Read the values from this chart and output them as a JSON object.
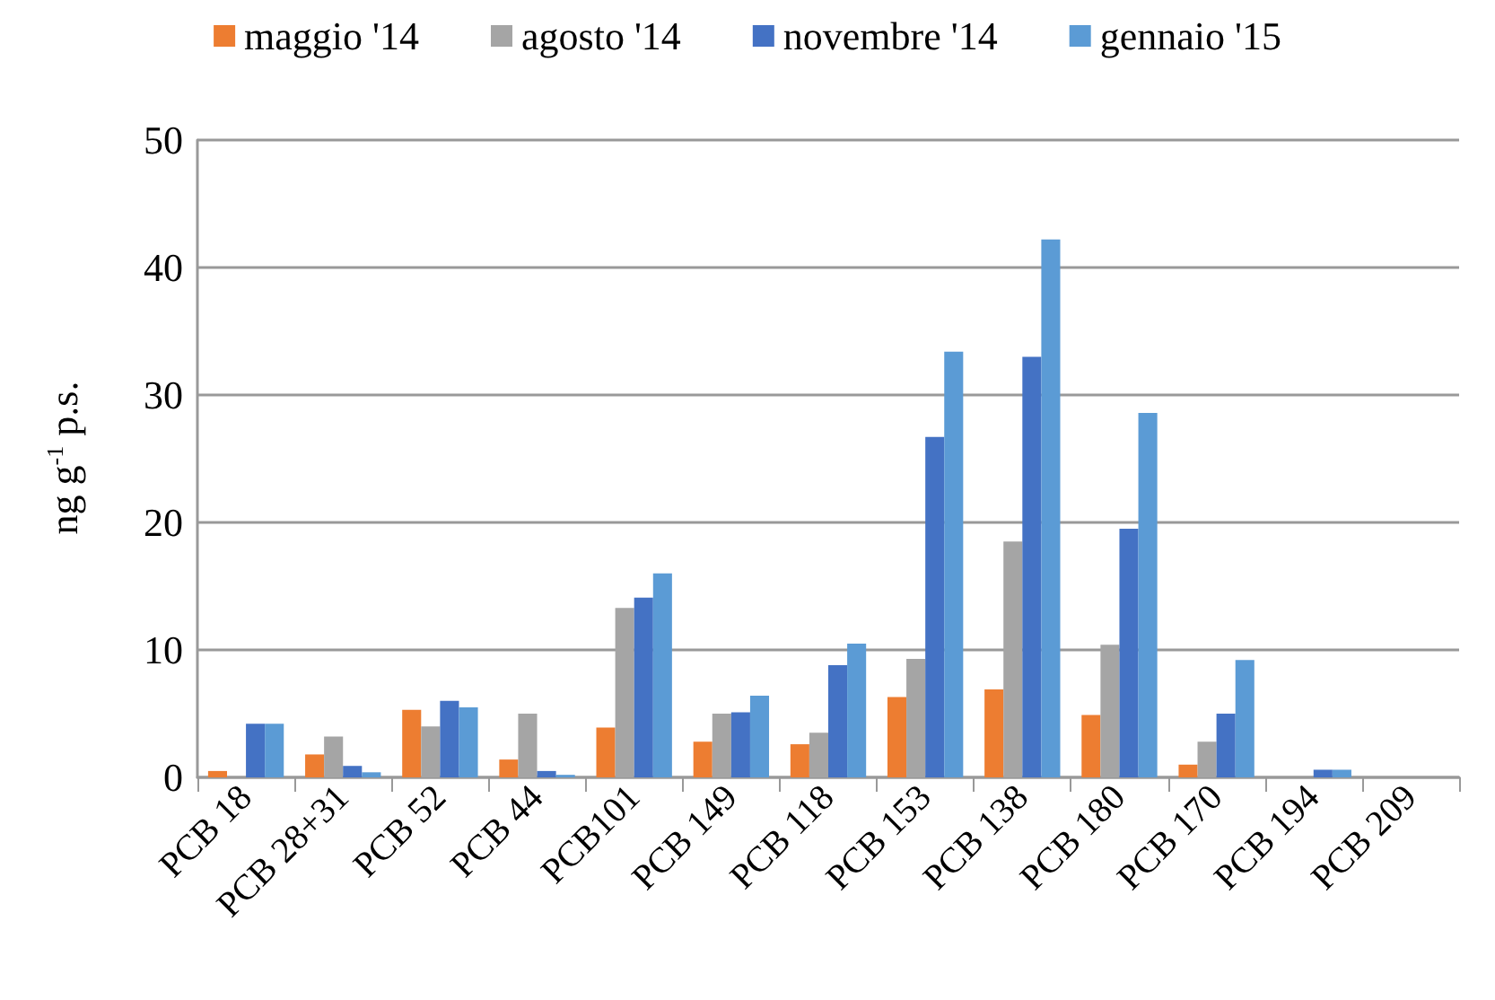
{
  "chart_data": {
    "type": "bar",
    "ylabel": "ng g$^{-1}$ p.s.",
    "categories": [
      "PCB 18",
      "PCB 28+31",
      "PCB 52",
      "PCB 44",
      "PCB101",
      "PCB 149",
      "PCB 118",
      "PCB 153",
      "PCB 138",
      "PCB 180",
      "PCB 170",
      "PCB 194",
      "PCB 209"
    ],
    "series": [
      {
        "name": "maggio '14",
        "color": "#ed7d31",
        "values": [
          0.5,
          1.8,
          5.3,
          1.4,
          3.9,
          2.8,
          2.6,
          6.3,
          6.9,
          4.9,
          1.0,
          0,
          0
        ]
      },
      {
        "name": "agosto '14",
        "color": "#a5a5a5",
        "values": [
          0,
          3.2,
          4.0,
          5.0,
          13.3,
          5.0,
          3.5,
          9.3,
          18.5,
          10.4,
          2.8,
          0,
          0
        ]
      },
      {
        "name": "novembre '14",
        "color": "#4472c4",
        "values": [
          4.2,
          0.9,
          6.0,
          0.5,
          14.1,
          5.1,
          8.8,
          26.7,
          33.0,
          19.5,
          5.0,
          0.6,
          0
        ]
      },
      {
        "name": "gennaio '15",
        "color": "#5b9bd5",
        "values": [
          4.2,
          0.4,
          5.5,
          0.2,
          16.0,
          6.4,
          10.5,
          33.4,
          42.2,
          28.6,
          9.2,
          0.6,
          0
        ]
      }
    ],
    "ylim": [
      0,
      50
    ],
    "yticks": [
      0,
      10,
      20,
      30,
      40,
      50
    ],
    "grid": "y",
    "legend": "top"
  }
}
